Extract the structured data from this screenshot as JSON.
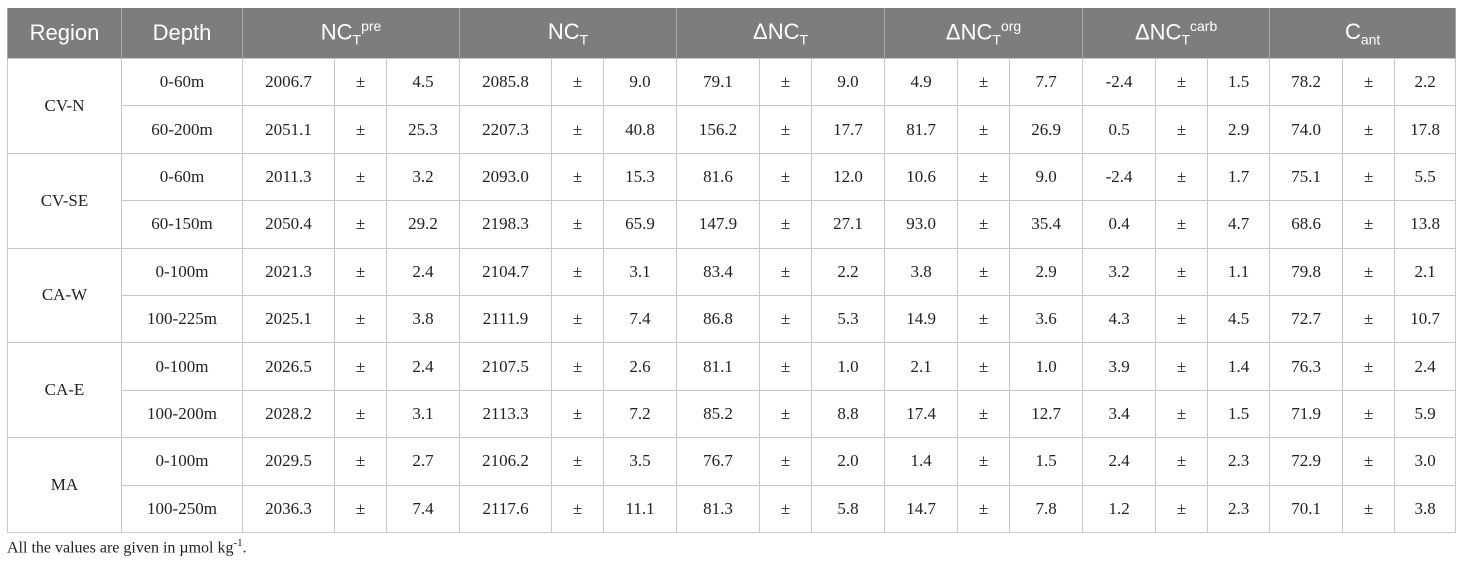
{
  "table": {
    "headers": {
      "region": "Region",
      "depth": "Depth",
      "nct_pre": {
        "base": "NC",
        "sub": "T",
        "sup": "pre"
      },
      "nct": {
        "base": "NC",
        "sub": "T"
      },
      "dnct": {
        "base": "ΔNC",
        "sub": "T"
      },
      "dnct_org": {
        "base": "ΔNC",
        "sub": "T",
        "sup": "org"
      },
      "dnct_carb": {
        "base": "ΔNC",
        "sub": "T",
        "sup": "carb"
      },
      "cant": {
        "base": "C",
        "sub": "ant"
      }
    },
    "pm": "±",
    "groups": [
      {
        "region": "CV-N",
        "rows": [
          {
            "depth": "0-60m",
            "values": [
              [
                "2006.7",
                "4.5"
              ],
              [
                "2085.8",
                "9.0"
              ],
              [
                "79.1",
                "9.0"
              ],
              [
                "4.9",
                "7.7"
              ],
              [
                "-2.4",
                "1.5"
              ],
              [
                "78.2",
                "2.2"
              ]
            ]
          },
          {
            "depth": "60-200m",
            "values": [
              [
                "2051.1",
                "25.3"
              ],
              [
                "2207.3",
                "40.8"
              ],
              [
                "156.2",
                "17.7"
              ],
              [
                "81.7",
                "26.9"
              ],
              [
                "0.5",
                "2.9"
              ],
              [
                "74.0",
                "17.8"
              ]
            ]
          }
        ]
      },
      {
        "region": "CV-SE",
        "rows": [
          {
            "depth": "0-60m",
            "values": [
              [
                "2011.3",
                "3.2"
              ],
              [
                "2093.0",
                "15.3"
              ],
              [
                "81.6",
                "12.0"
              ],
              [
                "10.6",
                "9.0"
              ],
              [
                "-2.4",
                "1.7"
              ],
              [
                "75.1",
                "5.5"
              ]
            ]
          },
          {
            "depth": "60-150m",
            "values": [
              [
                "2050.4",
                "29.2"
              ],
              [
                "2198.3",
                "65.9"
              ],
              [
                "147.9",
                "27.1"
              ],
              [
                "93.0",
                "35.4"
              ],
              [
                "0.4",
                "4.7"
              ],
              [
                "68.6",
                "13.8"
              ]
            ]
          }
        ]
      },
      {
        "region": "CA-W",
        "rows": [
          {
            "depth": "0-100m",
            "values": [
              [
                "2021.3",
                "2.4"
              ],
              [
                "2104.7",
                "3.1"
              ],
              [
                "83.4",
                "2.2"
              ],
              [
                "3.8",
                "2.9"
              ],
              [
                "3.2",
                "1.1"
              ],
              [
                "79.8",
                "2.1"
              ]
            ]
          },
          {
            "depth": "100-225m",
            "values": [
              [
                "2025.1",
                "3.8"
              ],
              [
                "2111.9",
                "7.4"
              ],
              [
                "86.8",
                "5.3"
              ],
              [
                "14.9",
                "3.6"
              ],
              [
                "4.3",
                "4.5"
              ],
              [
                "72.7",
                "10.7"
              ]
            ]
          }
        ]
      },
      {
        "region": "CA-E",
        "rows": [
          {
            "depth": "0-100m",
            "values": [
              [
                "2026.5",
                "2.4"
              ],
              [
                "2107.5",
                "2.6"
              ],
              [
                "81.1",
                "1.0"
              ],
              [
                "2.1",
                "1.0"
              ],
              [
                "3.9",
                "1.4"
              ],
              [
                "76.3",
                "2.4"
              ]
            ]
          },
          {
            "depth": "100-200m",
            "values": [
              [
                "2028.2",
                "3.1"
              ],
              [
                "2113.3",
                "7.2"
              ],
              [
                "85.2",
                "8.8"
              ],
              [
                "17.4",
                "12.7"
              ],
              [
                "3.4",
                "1.5"
              ],
              [
                "71.9",
                "5.9"
              ]
            ]
          }
        ]
      },
      {
        "region": "MA",
        "rows": [
          {
            "depth": "0-100m",
            "values": [
              [
                "2029.5",
                "2.7"
              ],
              [
                "2106.2",
                "3.5"
              ],
              [
                "76.7",
                "2.0"
              ],
              [
                "1.4",
                "1.5"
              ],
              [
                "2.4",
                "2.3"
              ],
              [
                "72.9",
                "3.0"
              ]
            ]
          },
          {
            "depth": "100-250m",
            "values": [
              [
                "2036.3",
                "7.4"
              ],
              [
                "2117.6",
                "11.1"
              ],
              [
                "81.3",
                "5.8"
              ],
              [
                "14.7",
                "7.8"
              ],
              [
                "1.2",
                "2.3"
              ],
              [
                "70.1",
                "3.8"
              ]
            ]
          }
        ]
      }
    ]
  },
  "footnote": {
    "text": "All the values are given in µmol kg",
    "sup": "-1",
    "end": "."
  }
}
